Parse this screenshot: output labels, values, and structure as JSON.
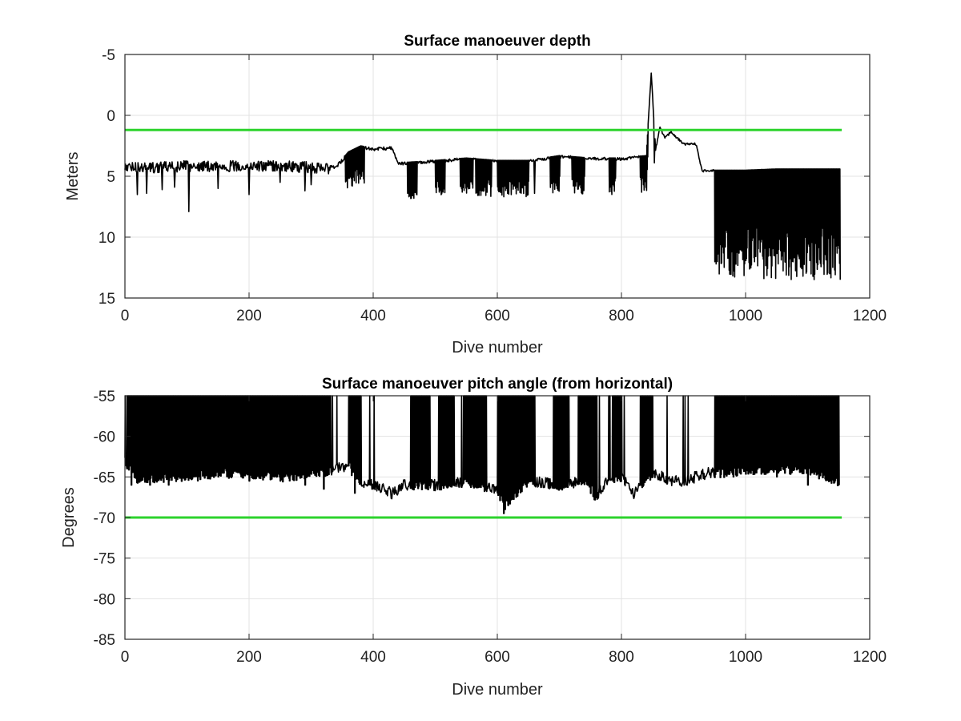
{
  "chart_data": [
    {
      "type": "line",
      "title": "Surface manoeuver depth",
      "xlabel": "Dive number",
      "ylabel": "Meters",
      "xlim": [
        0,
        1200
      ],
      "ylim": [
        -5,
        15
      ],
      "y_reversed": true,
      "grid": true,
      "xticks": [
        "0",
        "200",
        "400",
        "600",
        "800",
        "1000",
        "1200"
      ],
      "yticks": [
        "-5",
        "0",
        "5",
        "10",
        "15"
      ],
      "series": [
        {
          "color": "#000000",
          "sampled": [
            [
              0,
              4.0
            ],
            [
              50,
              4.0
            ],
            [
              100,
              3.9
            ],
            [
              150,
              3.9
            ],
            [
              200,
              3.9
            ],
            [
              250,
              3.9
            ],
            [
              300,
              4.0
            ],
            [
              340,
              4.2
            ],
            [
              360,
              3.0
            ],
            [
              380,
              2.5
            ],
            [
              400,
              2.7
            ],
            [
              430,
              2.6
            ],
            [
              440,
              3.9
            ],
            [
              500,
              3.7
            ],
            [
              550,
              3.5
            ],
            [
              600,
              3.7
            ],
            [
              650,
              3.7
            ],
            [
              700,
              3.3
            ],
            [
              750,
              3.5
            ],
            [
              800,
              3.5
            ],
            [
              840,
              3.3
            ],
            [
              848,
              -3.5
            ],
            [
              855,
              2.8
            ],
            [
              862,
              0.9
            ],
            [
              870,
              1.8
            ],
            [
              880,
              1.3
            ],
            [
              900,
              2.3
            ],
            [
              920,
              2.3
            ],
            [
              930,
              4.5
            ],
            [
              950,
              4.5
            ],
            [
              1000,
              4.5
            ],
            [
              1050,
              4.4
            ],
            [
              1100,
              4.4
            ],
            [
              1152,
              4.4
            ]
          ],
          "spikes": [
            [
              20,
              6.5
            ],
            [
              35,
              6.4
            ],
            [
              60,
              6.1
            ],
            [
              80,
              5.9
            ],
            [
              103,
              7.9
            ],
            [
              150,
              6.0
            ],
            [
              200,
              6.5
            ],
            [
              250,
              5.5
            ],
            [
              290,
              6.2
            ],
            [
              300,
              5.7
            ],
            [
              362,
              5.8
            ],
            [
              378,
              6.7
            ],
            [
              465,
              5.9
            ],
            [
              510,
              7.0
            ],
            [
              545,
              8.1
            ],
            [
              580,
              7.0
            ],
            [
              615,
              5.9
            ],
            [
              650,
              6.2
            ],
            [
              660,
              6.4
            ],
            [
              695,
              5.5
            ],
            [
              735,
              5.0
            ],
            [
              785,
              5.5
            ],
            [
              840,
              6.1
            ],
            [
              853,
              3.9
            ],
            [
              955,
              13.5
            ],
            [
              968,
              13.4
            ],
            [
              985,
              14.3
            ],
            [
              995,
              14.0
            ],
            [
              1010,
              13.3
            ],
            [
              1030,
              13.0
            ],
            [
              1050,
              12.5
            ],
            [
              1070,
              12.6
            ],
            [
              1090,
              13.4
            ],
            [
              1100,
              12.9
            ],
            [
              1120,
              12.2
            ],
            [
              1140,
              13.0
            ],
            [
              1150,
              12.0
            ]
          ]
        },
        {
          "color": "#2dd32d",
          "sampled": [
            [
              0,
              1.2
            ],
            [
              1155,
              1.2
            ]
          ]
        }
      ]
    },
    {
      "type": "line",
      "title": "Surface manoeuver pitch angle (from horizontal)",
      "xlabel": "Dive number",
      "ylabel": "Degrees",
      "xlim": [
        0,
        1200
      ],
      "ylim": [
        -85,
        -55
      ],
      "grid": true,
      "xticks": [
        "0",
        "200",
        "400",
        "600",
        "800",
        "1000",
        "1200"
      ],
      "yticks": [
        "-55",
        "-60",
        "-65",
        "-70",
        "-75",
        "-80",
        "-85"
      ],
      "series": [
        {
          "color": "#000000",
          "sampled": [
            [
              0,
              -63.0
            ],
            [
              20,
              -65.5
            ],
            [
              50,
              -65.0
            ],
            [
              100,
              -65.0
            ],
            [
              150,
              -64.5
            ],
            [
              200,
              -64.5
            ],
            [
              250,
              -65.0
            ],
            [
              300,
              -64.5
            ],
            [
              340,
              -64.0
            ],
            [
              360,
              -63.5
            ],
            [
              380,
              -66.0
            ],
            [
              400,
              -66.0
            ],
            [
              430,
              -67.0
            ],
            [
              450,
              -66.0
            ],
            [
              500,
              -66.0
            ],
            [
              550,
              -65.5
            ],
            [
              600,
              -66.5
            ],
            [
              610,
              -68.5
            ],
            [
              650,
              -65.5
            ],
            [
              700,
              -66.0
            ],
            [
              740,
              -65.5
            ],
            [
              760,
              -67.5
            ],
            [
              780,
              -65.0
            ],
            [
              800,
              -65.0
            ],
            [
              820,
              -67.0
            ],
            [
              850,
              -64.5
            ],
            [
              880,
              -65.5
            ],
            [
              900,
              -65.5
            ],
            [
              940,
              -64.5
            ],
            [
              960,
              -64.5
            ],
            [
              1000,
              -64.0
            ],
            [
              1050,
              -64.0
            ],
            [
              1100,
              -64.0
            ],
            [
              1150,
              -65.5
            ]
          ],
          "spikes": [
            [
              10,
              -66.0
            ],
            [
              40,
              -66.0
            ],
            [
              70,
              -66.0
            ],
            [
              110,
              -65.0
            ],
            [
              150,
              -65.0
            ],
            [
              200,
              -65.5
            ],
            [
              240,
              -65.0
            ],
            [
              290,
              -66.0
            ],
            [
              320,
              -66.5
            ],
            [
              370,
              -67.0
            ],
            [
              610,
              -69.5
            ],
            [
              760,
              -67.5
            ],
            [
              900,
              -65.5
            ],
            [
              980,
              -65.0
            ],
            [
              1050,
              -65.0
            ],
            [
              1100,
              -66.0
            ],
            [
              1150,
              -66.0
            ]
          ],
          "dense_bands": [
            [
              5,
              330
            ],
            [
              360,
              380
            ],
            [
              460,
              490
            ],
            [
              505,
              530
            ],
            [
              545,
              582
            ],
            [
              600,
              660
            ],
            [
              690,
              715
            ],
            [
              730,
              760
            ],
            [
              785,
              800
            ],
            [
              830,
              850
            ],
            [
              950,
              1155
            ]
          ],
          "spike_top": -55
        },
        {
          "color": "#2dd32d",
          "sampled": [
            [
              0,
              -70
            ],
            [
              1155,
              -70
            ]
          ]
        }
      ]
    }
  ]
}
